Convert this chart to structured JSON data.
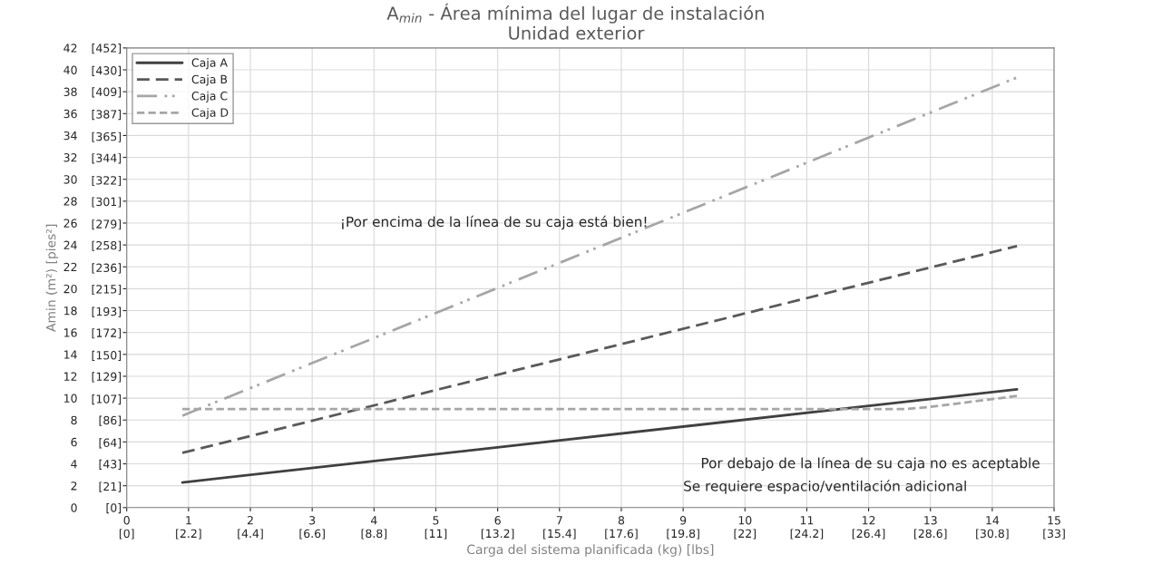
{
  "chart_data": {
    "type": "line",
    "title": "A$_{min}$ - Área mínima del lugar de instalación",
    "subtitle": "Unidad exterior",
    "xlabel": "Carga del sistema planificada (kg) [lbs]",
    "ylabel": "Amin (m²) [pies²]",
    "series": [
      {
        "name": "Caja A",
        "color": "#404040",
        "line_style": "solid",
        "x": [
          0.9,
          14.4
        ],
        "values": [
          2.3,
          10.8
        ]
      },
      {
        "name": "Caja B",
        "color": "#595959",
        "line_style": "dashed",
        "x": [
          0.9,
          14.4
        ],
        "values": [
          5.0,
          23.9
        ]
      },
      {
        "name": "Caja C",
        "color": "#a6a6a6",
        "line_style": "dashdotdot",
        "x": [
          0.9,
          14.4
        ],
        "values": [
          8.4,
          39.3
        ]
      },
      {
        "name": "Caja D",
        "color": "#a6a6a6",
        "line_style": "dotted",
        "x": [
          0.9,
          12.6,
          13.0,
          14.4
        ],
        "values": [
          9.0,
          9.0,
          9.2,
          10.2
        ]
      }
    ],
    "xlim": [
      0,
      15
    ],
    "ylim": [
      0,
      42
    ],
    "xticks": [
      0,
      1,
      2,
      3,
      4,
      5,
      6,
      7,
      8,
      9,
      10,
      11,
      12,
      13,
      14,
      15
    ],
    "yticks": [
      0,
      2,
      4,
      6,
      8,
      10,
      12,
      14,
      16,
      18,
      20,
      22,
      24,
      26,
      28,
      30,
      32,
      34,
      36,
      38,
      40,
      42
    ],
    "x2lim": [
      0,
      33
    ],
    "x2ticks": [
      {
        "value": 0,
        "label": "[0]"
      },
      {
        "value": 2.2,
        "label": "[2.2]"
      },
      {
        "value": 4.4,
        "label": "[4.4]"
      },
      {
        "value": 6.6,
        "label": "[6.6]"
      },
      {
        "value": 8.8,
        "label": "[8.8]"
      },
      {
        "value": 11,
        "label": "[11]"
      },
      {
        "value": 13.2,
        "label": "[13.2]"
      },
      {
        "value": 15.4,
        "label": "[15.4]"
      },
      {
        "value": 17.6,
        "label": "[17.6]"
      },
      {
        "value": 19.8,
        "label": "[19.8]"
      },
      {
        "value": 22,
        "label": "[22]"
      },
      {
        "value": 24.2,
        "label": "[24.2]"
      },
      {
        "value": 26.4,
        "label": "[26.4]"
      },
      {
        "value": 28.6,
        "label": "[28.6]"
      },
      {
        "value": 30.8,
        "label": "[30.8]"
      },
      {
        "value": 33,
        "label": "[33]"
      }
    ],
    "y2lim": [
      0,
      452
    ],
    "y2ticks": [
      {
        "value": 0,
        "label": "[0]"
      },
      {
        "value": 21,
        "label": "[21]"
      },
      {
        "value": 43,
        "label": "[43]"
      },
      {
        "value": 64,
        "label": "[64]"
      },
      {
        "value": 86,
        "label": "[86]"
      },
      {
        "value": 107,
        "label": "[107]"
      },
      {
        "value": 129,
        "label": "[129]"
      },
      {
        "value": 150,
        "label": "[150]"
      },
      {
        "value": 172,
        "label": "[172]"
      },
      {
        "value": 193,
        "label": "[193]"
      },
      {
        "value": 215,
        "label": "[215]"
      },
      {
        "value": 236,
        "label": "[236]"
      },
      {
        "value": 258,
        "label": "[258]"
      },
      {
        "value": 279,
        "label": "[279]"
      },
      {
        "value": 301,
        "label": "[301]"
      },
      {
        "value": 322,
        "label": "[322]"
      },
      {
        "value": 344,
        "label": "[344]"
      },
      {
        "value": 365,
        "label": "[365]"
      },
      {
        "value": 387,
        "label": "[387]"
      },
      {
        "value": 409,
        "label": "[409]"
      },
      {
        "value": 430,
        "label": "[430]"
      },
      {
        "value": 452,
        "label": "[452]"
      }
    ],
    "grid": true,
    "legend": "top left",
    "annotations": [
      "¡Por encima de la línea de su caja está bien!",
      "Por debajo de la línea de su caja no es aceptable",
      "Se requiere espacio/ventilación adicional"
    ]
  }
}
